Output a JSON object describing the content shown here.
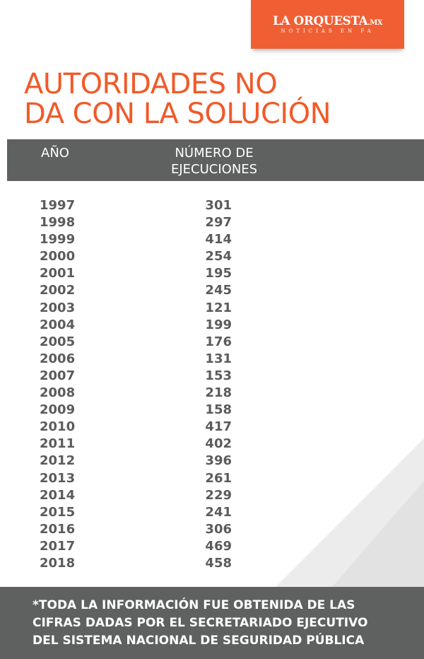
{
  "logo": {
    "main": "LA ORQUESTA",
    "suffix": ".MX",
    "tagline": "NOTICIAS EN FA"
  },
  "title": [
    "AUTORIDADES NO",
    "DA CON LA SOLUCIÓN"
  ],
  "colors": {
    "accent": "#f05a2a",
    "band": "#5f6060",
    "text": "#5b5b5b"
  },
  "chart_data": {
    "type": "table",
    "columns": [
      "AÑO",
      "NÚMERO DE EJECUCIONES"
    ],
    "header": {
      "year": "AÑO",
      "count_line1": "NÚMERO DE",
      "count_line2": "EJECUCIONES"
    },
    "rows": [
      {
        "year": "1997",
        "value": "301"
      },
      {
        "year": "1998",
        "value": "297"
      },
      {
        "year": "1999",
        "value": "414"
      },
      {
        "year": "2000",
        "value": "254"
      },
      {
        "year": "2001",
        "value": "195"
      },
      {
        "year": "2002",
        "value": "245"
      },
      {
        "year": "2003",
        "value": "121"
      },
      {
        "year": "2004",
        "value": "199"
      },
      {
        "year": "2005",
        "value": "176"
      },
      {
        "year": "2006",
        "value": "131"
      },
      {
        "year": "2007",
        "value": "153"
      },
      {
        "year": "2008",
        "value": "218"
      },
      {
        "year": "2009",
        "value": "158"
      },
      {
        "year": "2010",
        "value": "417"
      },
      {
        "year": "2011",
        "value": "402"
      },
      {
        "year": "2012",
        "value": "396"
      },
      {
        "year": "2013",
        "value": "261"
      },
      {
        "year": "2014",
        "value": "229"
      },
      {
        "year": "2015",
        "value": "241"
      },
      {
        "year": "2016",
        "value": "306"
      },
      {
        "year": "2017",
        "value": "469"
      },
      {
        "year": "2018",
        "value": "458"
      }
    ]
  },
  "footer": [
    "*TODA LA INFORMACIÓN FUE OBTENIDA DE LAS",
    "CIFRAS DADAS POR EL SECRETARIADO EJECUTIVO",
    "DEL SISTEMA NACIONAL DE SEGURIDAD PÚBLICA"
  ]
}
